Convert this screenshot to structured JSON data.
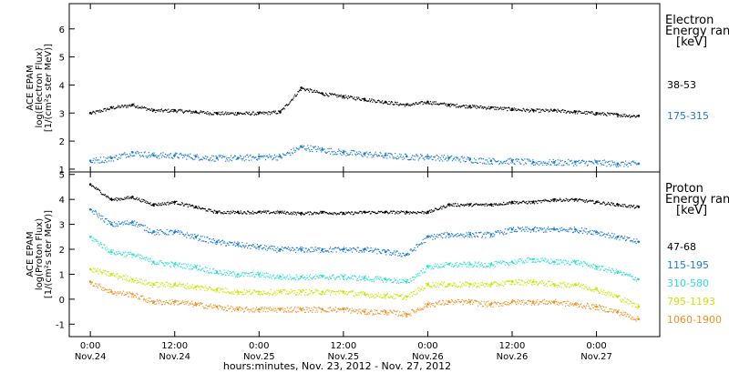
{
  "chart_data": [
    {
      "type": "scatter",
      "panel": "electron",
      "ylabel_lines": [
        "ACE EPAM",
        "log(Electron Flux)",
        "[1/(cm²s ster MeV)]"
      ],
      "ylim": [
        0.9,
        6.9
      ],
      "yticks": [
        1,
        2,
        3,
        4,
        5,
        6
      ],
      "legend_title_lines": [
        "Electron",
        "Energy ranges",
        "[keV]"
      ],
      "series": [
        {
          "name": "38-53",
          "color": "#000000",
          "x": [
            0,
            6,
            12,
            18,
            24,
            30,
            36,
            42,
            48,
            54,
            60,
            66,
            72,
            78,
            84,
            90,
            96,
            102,
            108,
            114,
            120,
            126,
            132,
            138,
            144,
            150,
            156
          ],
          "y": [
            3.0,
            3.2,
            3.3,
            3.1,
            3.1,
            3.05,
            3.0,
            3.0,
            3.0,
            3.05,
            3.9,
            3.7,
            3.6,
            3.5,
            3.4,
            3.3,
            3.4,
            3.3,
            3.25,
            3.2,
            3.15,
            3.1,
            3.1,
            3.05,
            3.0,
            2.95,
            2.9
          ]
        },
        {
          "name": "175-315",
          "color": "#1a7ad9",
          "x": [
            0,
            6,
            12,
            18,
            24,
            30,
            36,
            42,
            48,
            54,
            60,
            66,
            72,
            78,
            84,
            90,
            96,
            102,
            108,
            114,
            120,
            126,
            132,
            138,
            144,
            150,
            156
          ],
          "y": [
            1.3,
            1.4,
            1.6,
            1.5,
            1.5,
            1.45,
            1.4,
            1.4,
            1.45,
            1.45,
            1.8,
            1.7,
            1.6,
            1.55,
            1.5,
            1.45,
            1.45,
            1.4,
            1.35,
            1.3,
            1.3,
            1.25,
            1.25,
            1.25,
            1.25,
            1.2,
            1.2
          ]
        }
      ]
    },
    {
      "type": "scatter",
      "panel": "proton",
      "ylabel_lines": [
        "ACE EPAM",
        "log(Proton Flux)",
        "[1/(cm²s ster MeV)]"
      ],
      "ylim": [
        -1.5,
        5.1
      ],
      "yticks": [
        -1,
        0,
        1,
        2,
        3,
        4,
        5
      ],
      "legend_title_lines": [
        "Proton",
        "Energy ranges",
        "[keV]"
      ],
      "series": [
        {
          "name": "47-68",
          "color": "#000000",
          "x": [
            0,
            6,
            12,
            18,
            24,
            30,
            36,
            42,
            48,
            54,
            60,
            66,
            72,
            78,
            84,
            90,
            96,
            102,
            108,
            114,
            120,
            126,
            132,
            138,
            144,
            150,
            156
          ],
          "y": [
            4.6,
            4.0,
            4.1,
            3.8,
            3.9,
            3.7,
            3.5,
            3.5,
            3.5,
            3.5,
            3.45,
            3.5,
            3.45,
            3.5,
            3.5,
            3.5,
            3.5,
            3.8,
            3.8,
            3.8,
            3.9,
            3.9,
            4.0,
            4.0,
            3.9,
            3.8,
            3.7
          ]
        },
        {
          "name": "115-195",
          "color": "#1a7ad9",
          "x": [
            0,
            6,
            12,
            18,
            24,
            30,
            36,
            42,
            48,
            54,
            60,
            66,
            72,
            78,
            84,
            90,
            96,
            102,
            108,
            114,
            120,
            126,
            132,
            138,
            144,
            150,
            156
          ],
          "y": [
            3.6,
            3.0,
            3.1,
            2.7,
            2.7,
            2.5,
            2.3,
            2.2,
            2.1,
            2.0,
            2.0,
            2.0,
            2.0,
            2.0,
            1.9,
            1.8,
            2.5,
            2.6,
            2.6,
            2.6,
            2.8,
            2.8,
            2.8,
            2.8,
            2.7,
            2.5,
            2.3
          ]
        },
        {
          "name": "310-580",
          "color": "#2ee0d0",
          "x": [
            0,
            6,
            12,
            18,
            24,
            30,
            36,
            42,
            48,
            54,
            60,
            66,
            72,
            78,
            84,
            90,
            96,
            102,
            108,
            114,
            120,
            126,
            132,
            138,
            144,
            150,
            156
          ],
          "y": [
            2.5,
            1.9,
            1.8,
            1.5,
            1.4,
            1.3,
            1.1,
            1.0,
            1.0,
            0.9,
            0.9,
            0.9,
            0.9,
            0.85,
            0.8,
            0.7,
            1.3,
            1.4,
            1.4,
            1.4,
            1.5,
            1.6,
            1.5,
            1.5,
            1.3,
            1.1,
            0.8
          ]
        },
        {
          "name": "795-1193",
          "color": "#c8e600",
          "x": [
            0,
            6,
            12,
            18,
            24,
            30,
            36,
            42,
            48,
            54,
            60,
            66,
            72,
            78,
            84,
            90,
            96,
            102,
            108,
            114,
            120,
            126,
            132,
            138,
            144,
            150,
            156
          ],
          "y": [
            1.2,
            1.0,
            0.8,
            0.6,
            0.6,
            0.5,
            0.4,
            0.3,
            0.3,
            0.3,
            0.3,
            0.3,
            0.3,
            0.2,
            0.15,
            0.1,
            0.6,
            0.6,
            0.6,
            0.6,
            0.7,
            0.7,
            0.6,
            0.6,
            0.4,
            0.1,
            -0.3
          ]
        },
        {
          "name": "1060-1900",
          "color": "#f09020",
          "x": [
            0,
            6,
            12,
            18,
            24,
            30,
            36,
            42,
            48,
            54,
            60,
            66,
            72,
            78,
            84,
            90,
            96,
            102,
            108,
            114,
            120,
            126,
            132,
            138,
            144,
            150,
            156
          ],
          "y": [
            0.7,
            0.3,
            0.2,
            -0.1,
            -0.1,
            -0.2,
            -0.3,
            -0.4,
            -0.4,
            -0.4,
            -0.4,
            -0.4,
            -0.4,
            -0.5,
            -0.5,
            -0.6,
            -0.2,
            -0.1,
            -0.1,
            -0.2,
            -0.1,
            -0.1,
            -0.1,
            -0.2,
            -0.3,
            -0.5,
            -0.8
          ]
        }
      ]
    }
  ],
  "xaxis": {
    "xlim": [
      -6,
      162
    ],
    "ticks": [
      {
        "x": 0,
        "time": "0:00",
        "date": "Nov.24"
      },
      {
        "x": 24,
        "time": "12:00",
        "date": "Nov.24"
      },
      {
        "x": 48,
        "time": "0:00",
        "date": "Nov.25"
      },
      {
        "x": 72,
        "time": "12:00",
        "date": "Nov.25"
      },
      {
        "x": 96,
        "time": "0:00",
        "date": "Nov.26"
      },
      {
        "x": 120,
        "time": "12:00",
        "date": "Nov.26"
      },
      {
        "x": 144,
        "time": "0:00",
        "date": "Nov.27"
      }
    ],
    "label": "hours:minutes, Nov. 23, 2012 - Nov. 27, 2012"
  }
}
